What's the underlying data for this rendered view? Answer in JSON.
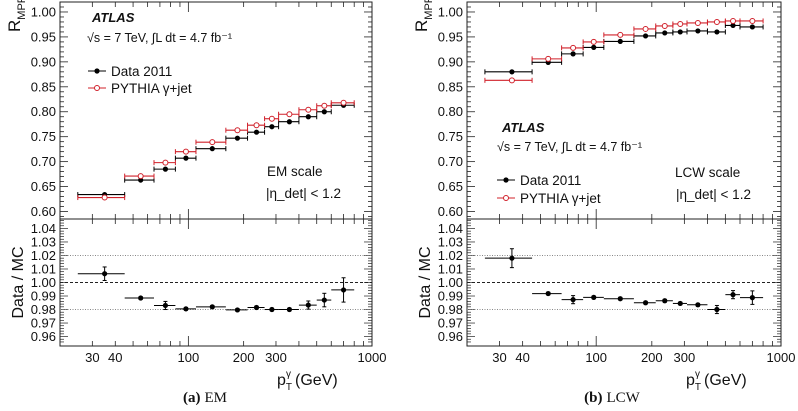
{
  "chart_data": [
    {
      "type": "scatter",
      "panel": "a",
      "caption_label": "(a)",
      "caption_text": "EM",
      "title": "",
      "xlabel": "p_T^γ (GeV)",
      "xlabel_main": "p",
      "xlabel_sub": "T",
      "xlabel_sup": "γ",
      "xlabel_unit": "(GeV)",
      "xscale": "log",
      "xlim": [
        20,
        1000
      ],
      "xticks": [
        30,
        40,
        100,
        200,
        300,
        1000
      ],
      "ylabel_main": "R",
      "ylabel_sub": "MPF",
      "ylim": [
        0.585,
        1.02
      ],
      "yticks": [
        "0.60",
        "0.65",
        "0.70",
        "0.75",
        "0.80",
        "0.85",
        "0.90",
        "0.95",
        "1.00"
      ],
      "ratio_ylabel": "Data / MC",
      "ratio_ylim": [
        0.953,
        1.047
      ],
      "ratio_yticks": [
        "0.96",
        "0.97",
        "0.98",
        "0.99",
        "1.00",
        "1.01",
        "1.02",
        "1.03",
        "1.04"
      ],
      "atlas_label": "ATLAS",
      "energy_label": "√s = 7 TeV, ∫L dt = 4.7 fb⁻¹",
      "scale_label": "EM scale",
      "eta_label": "|η_det| < 1.2",
      "eta_text": "|η",
      "eta_sub": "det",
      "eta_cut": "| < 1.2",
      "legend_position": "top-left",
      "bins": [
        [
          25,
          45
        ],
        [
          45,
          65
        ],
        [
          65,
          85
        ],
        [
          85,
          110
        ],
        [
          110,
          160
        ],
        [
          160,
          210
        ],
        [
          210,
          260
        ],
        [
          260,
          310
        ],
        [
          310,
          400
        ],
        [
          400,
          500
        ],
        [
          500,
          600
        ],
        [
          600,
          800
        ]
      ],
      "x": [
        35,
        55,
        75,
        97,
        135,
        185,
        235,
        285,
        355,
        450,
        550,
        700
      ],
      "series": [
        {
          "name": "Data 2011",
          "color": "#000000",
          "marker": "filled-circle",
          "values": [
            0.634,
            0.663,
            0.685,
            0.707,
            0.726,
            0.747,
            0.759,
            0.77,
            0.78,
            0.79,
            0.8,
            0.813
          ]
        },
        {
          "name": "PYTHIA γ+jet",
          "color": "#d0202a",
          "marker": "open-circle",
          "values": [
            0.628,
            0.671,
            0.698,
            0.72,
            0.739,
            0.763,
            0.773,
            0.786,
            0.795,
            0.804,
            0.812,
            0.818
          ]
        }
      ],
      "ratio": {
        "values": [
          1.0065,
          0.9885,
          0.983,
          0.9805,
          0.982,
          0.9797,
          0.9815,
          0.98,
          0.98,
          0.9833,
          0.987,
          0.9945
        ],
        "errors": [
          0.005,
          0.001,
          0.003,
          0.001,
          0.001,
          0.001,
          0.001,
          0.001,
          0.001,
          0.003,
          0.005,
          0.009
        ]
      }
    },
    {
      "type": "scatter",
      "panel": "b",
      "caption_label": "(b)",
      "caption_text": "LCW",
      "title": "",
      "xlabel": "p_T^γ (GeV)",
      "xlabel_main": "p",
      "xlabel_sub": "T",
      "xlabel_sup": "γ",
      "xlabel_unit": "(GeV)",
      "xscale": "log",
      "xlim": [
        20,
        1000
      ],
      "xticks": [
        30,
        40,
        100,
        200,
        300,
        1000
      ],
      "ylabel_main": "R",
      "ylabel_sub": "MPF",
      "ylim": [
        0.585,
        1.02
      ],
      "yticks": [
        "0.60",
        "0.65",
        "0.70",
        "0.75",
        "0.80",
        "0.85",
        "0.90",
        "0.95",
        "1.00"
      ],
      "ratio_ylabel": "Data / MC",
      "ratio_ylim": [
        0.953,
        1.047
      ],
      "ratio_yticks": [
        "0.96",
        "0.97",
        "0.98",
        "0.99",
        "1.00",
        "1.01",
        "1.02",
        "1.03",
        "1.04"
      ],
      "atlas_label": "ATLAS",
      "energy_label": "√s = 7 TeV, ∫L dt = 4.7 fb⁻¹",
      "scale_label": "LCW scale",
      "eta_label": "|η_det| < 1.2",
      "eta_text": "|η",
      "eta_sub": "det",
      "eta_cut": "| < 1.2",
      "legend_position": "bottom-left",
      "bins": [
        [
          25,
          45
        ],
        [
          45,
          65
        ],
        [
          65,
          85
        ],
        [
          85,
          110
        ],
        [
          110,
          160
        ],
        [
          160,
          210
        ],
        [
          210,
          260
        ],
        [
          260,
          310
        ],
        [
          310,
          400
        ],
        [
          400,
          500
        ],
        [
          500,
          600
        ],
        [
          600,
          800
        ]
      ],
      "x": [
        35,
        55,
        75,
        97,
        135,
        185,
        235,
        285,
        355,
        450,
        550,
        700
      ],
      "series": [
        {
          "name": "Data 2011",
          "color": "#000000",
          "marker": "filled-circle",
          "values": [
            0.88,
            0.899,
            0.916,
            0.929,
            0.941,
            0.952,
            0.958,
            0.96,
            0.962,
            0.96,
            0.973,
            0.97
          ]
        },
        {
          "name": "PYTHIA γ+jet",
          "color": "#d0202a",
          "marker": "open-circle",
          "values": [
            0.863,
            0.906,
            0.928,
            0.94,
            0.954,
            0.966,
            0.972,
            0.976,
            0.978,
            0.98,
            0.982,
            0.982
          ]
        }
      ],
      "ratio": {
        "values": [
          1.018,
          0.9918,
          0.9873,
          0.989,
          0.988,
          0.985,
          0.9865,
          0.9845,
          0.9835,
          0.98,
          0.991,
          0.9888
        ],
        "errors": [
          0.007,
          0.001,
          0.003,
          0.001,
          0.001,
          0.001,
          0.001,
          0.001,
          0.001,
          0.003,
          0.003,
          0.005
        ]
      }
    }
  ]
}
